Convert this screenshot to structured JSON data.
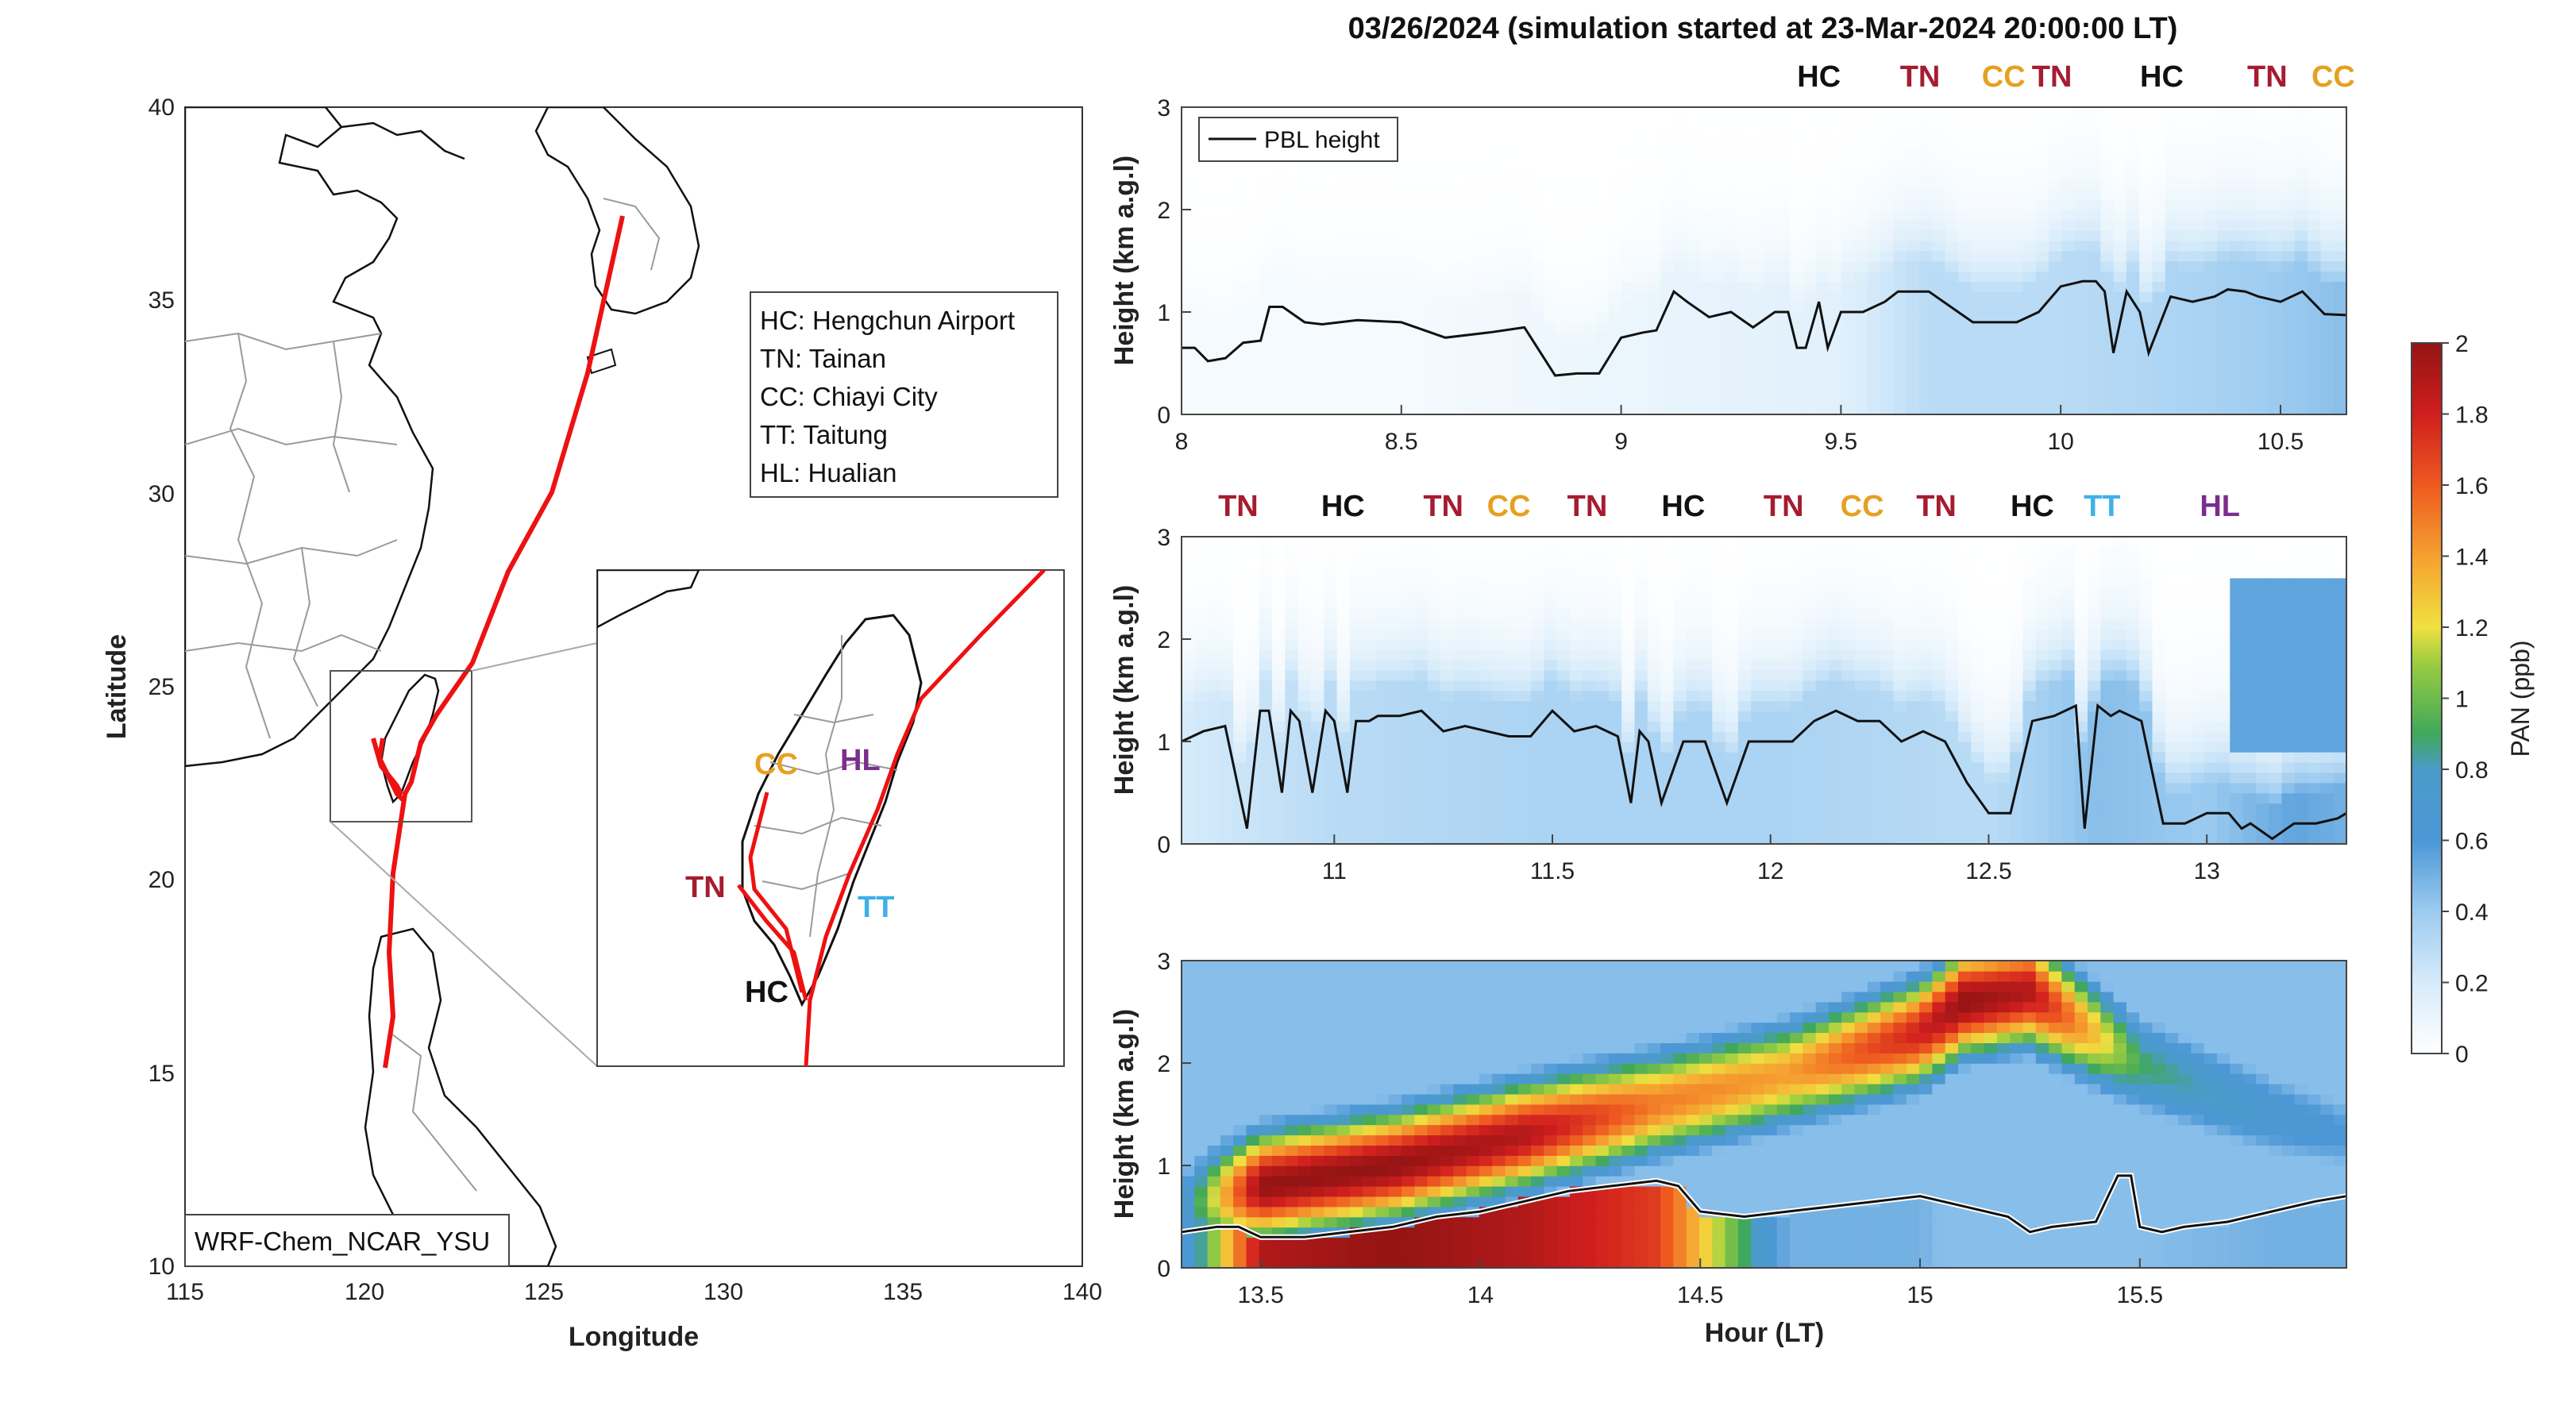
{
  "title": "03/26/2024 (simulation started at 23-Mar-2024 20:00:00 LT)",
  "colors": {
    "HC": "#111111",
    "TN": "#a51c30",
    "CC": "#e6a020",
    "TT": "#3fb1e6",
    "HL": "#7b2d8e",
    "track": "#ee1111"
  },
  "map": {
    "xlabel": "Longitude",
    "ylabel": "Latitude",
    "xticks": [
      "115",
      "120",
      "125",
      "130",
      "135",
      "140"
    ],
    "yticks": [
      "10",
      "15",
      "20",
      "25",
      "30",
      "35",
      "40"
    ],
    "xlim": [
      115,
      140
    ],
    "ylim": [
      10,
      40
    ],
    "legend": [
      "HC: Hengchun Airport",
      "TN: Tainan",
      "CC: Chiayi City",
      "TT: Taitung",
      "HL: Hualian"
    ],
    "model_label": "WRF-Chem_NCAR_YSU",
    "inset_labels": [
      "CC",
      "HL",
      "TN",
      "TT",
      "HC"
    ]
  },
  "chart_data": [
    {
      "type": "heatmap",
      "panel": "top",
      "xlim": [
        8,
        10.65
      ],
      "ylim": [
        0,
        3
      ],
      "xticks": [
        "8",
        "8.5",
        "9",
        "9.5",
        "10",
        "10.5"
      ],
      "yticks": [
        "0",
        "1",
        "2",
        "3"
      ],
      "ylabel": "Height (km a.g.l)",
      "xlabel": "",
      "site_labels": [
        {
          "label": "HC",
          "t": 9.45
        },
        {
          "label": "TN",
          "t": 9.68
        },
        {
          "label": "CC",
          "t": 9.87
        },
        {
          "label": "TN",
          "t": 9.98
        },
        {
          "label": "HC",
          "t": 10.23
        },
        {
          "label": "TN",
          "t": 10.47
        },
        {
          "label": "CC",
          "t": 10.62
        }
      ],
      "legend": [
        "PBL height"
      ],
      "pbl_height": {
        "t": [
          8,
          8.03,
          8.06,
          8.1,
          8.14,
          8.18,
          8.2,
          8.23,
          8.28,
          8.32,
          8.4,
          8.5,
          8.6,
          8.7,
          8.78,
          8.85,
          8.9,
          8.95,
          9.0,
          9.05,
          9.08,
          9.12,
          9.15,
          9.2,
          9.25,
          9.3,
          9.35,
          9.38,
          9.4,
          9.42,
          9.45,
          9.47,
          9.5,
          9.55,
          9.6,
          9.63,
          9.7,
          9.8,
          9.9,
          9.95,
          10.0,
          10.05,
          10.08,
          10.1,
          10.12,
          10.15,
          10.18,
          10.2,
          10.25,
          10.3,
          10.35,
          10.38,
          10.42,
          10.45,
          10.5,
          10.55,
          10.6,
          10.65
        ],
        "h": [
          0.65,
          0.65,
          0.52,
          0.55,
          0.7,
          0.72,
          1.05,
          1.05,
          0.9,
          0.88,
          0.92,
          0.9,
          0.75,
          0.8,
          0.85,
          0.38,
          0.4,
          0.4,
          0.75,
          0.8,
          0.82,
          1.2,
          1.1,
          0.95,
          1.0,
          0.85,
          1.0,
          1.0,
          0.65,
          0.65,
          1.1,
          0.65,
          1.0,
          1.0,
          1.1,
          1.2,
          1.2,
          0.9,
          0.9,
          1.0,
          1.25,
          1.3,
          1.3,
          1.2,
          0.6,
          1.2,
          1.0,
          0.6,
          1.15,
          1.1,
          1.15,
          1.22,
          1.2,
          1.15,
          1.1,
          1.2,
          0.98,
          0.97
        ]
      },
      "pan_summary": {
        "t": [
          8,
          8.5,
          9,
          9.5,
          9.7,
          10,
          10.3,
          10.5,
          10.65
        ],
        "bg_pan": [
          0.05,
          0.05,
          0.1,
          0.15,
          0.3,
          0.3,
          0.35,
          0.4,
          0.45
        ]
      }
    },
    {
      "type": "heatmap",
      "panel": "middle",
      "xlim": [
        10.65,
        13.32
      ],
      "ylim": [
        0,
        3
      ],
      "xticks": [
        "11",
        "11.5",
        "12",
        "12.5",
        "13"
      ],
      "yticks": [
        "0",
        "1",
        "2",
        "3"
      ],
      "ylabel": "Height (km a.g.l)",
      "xlabel": "",
      "site_labels": [
        {
          "label": "TN",
          "t": 10.78
        },
        {
          "label": "HC",
          "t": 11.02
        },
        {
          "label": "TN",
          "t": 11.25
        },
        {
          "label": "CC",
          "t": 11.4
        },
        {
          "label": "TN",
          "t": 11.58
        },
        {
          "label": "HC",
          "t": 11.8
        },
        {
          "label": "TN",
          "t": 12.03
        },
        {
          "label": "CC",
          "t": 12.21
        },
        {
          "label": "TN",
          "t": 12.38
        },
        {
          "label": "HC",
          "t": 12.6
        },
        {
          "label": "TT",
          "t": 12.76
        },
        {
          "label": "HL",
          "t": 13.03
        }
      ],
      "pbl_height": {
        "t": [
          10.65,
          10.7,
          10.75,
          10.8,
          10.83,
          10.85,
          10.88,
          10.9,
          10.92,
          10.95,
          10.98,
          11.0,
          11.03,
          11.05,
          11.08,
          11.1,
          11.15,
          11.2,
          11.25,
          11.3,
          11.35,
          11.4,
          11.45,
          11.5,
          11.55,
          11.6,
          11.65,
          11.68,
          11.7,
          11.72,
          11.75,
          11.8,
          11.85,
          11.9,
          11.95,
          12.0,
          12.05,
          12.1,
          12.15,
          12.2,
          12.25,
          12.3,
          12.35,
          12.4,
          12.45,
          12.5,
          12.55,
          12.6,
          12.65,
          12.7,
          12.72,
          12.75,
          12.78,
          12.8,
          12.85,
          12.9,
          12.95,
          13.0,
          13.05,
          13.08,
          13.1,
          13.15,
          13.2,
          13.25,
          13.3,
          13.32
        ],
        "h": [
          1.0,
          1.1,
          1.15,
          0.15,
          1.3,
          1.3,
          0.5,
          1.3,
          1.2,
          0.5,
          1.3,
          1.2,
          0.5,
          1.2,
          1.2,
          1.25,
          1.25,
          1.3,
          1.1,
          1.15,
          1.1,
          1.05,
          1.05,
          1.3,
          1.1,
          1.15,
          1.05,
          0.4,
          1.1,
          1.0,
          0.4,
          1.0,
          1.0,
          0.4,
          1.0,
          1.0,
          1.0,
          1.2,
          1.3,
          1.2,
          1.2,
          1.0,
          1.1,
          1.0,
          0.6,
          0.3,
          0.3,
          1.2,
          1.25,
          1.35,
          0.15,
          1.35,
          1.25,
          1.3,
          1.2,
          0.2,
          0.2,
          0.3,
          0.3,
          0.15,
          0.2,
          0.05,
          0.2,
          0.2,
          0.25,
          0.3
        ]
      },
      "pan_summary": {
        "t": [
          10.65,
          11,
          11.5,
          12,
          12.5,
          12.75,
          13,
          13.2,
          13.32
        ],
        "bg_pan": [
          0.2,
          0.3,
          0.35,
          0.35,
          0.3,
          0.45,
          0.4,
          0.55,
          0.5
        ]
      }
    },
    {
      "type": "heatmap",
      "panel": "bottom",
      "xlim": [
        13.32,
        15.97
      ],
      "ylim": [
        0,
        3
      ],
      "xticks": [
        "13.5",
        "14",
        "14.5",
        "15",
        "15.5"
      ],
      "yticks": [
        "0",
        "1",
        "2",
        "3"
      ],
      "ylabel": "Height (km a.g.l)",
      "xlabel": "Hour (LT)",
      "pbl_height": {
        "t": [
          13.32,
          13.4,
          13.45,
          13.5,
          13.6,
          13.7,
          13.8,
          13.9,
          14.0,
          14.1,
          14.2,
          14.3,
          14.4,
          14.45,
          14.5,
          14.6,
          14.7,
          14.8,
          14.9,
          15.0,
          15.1,
          15.2,
          15.25,
          15.3,
          15.4,
          15.45,
          15.48,
          15.5,
          15.55,
          15.6,
          15.7,
          15.8,
          15.9,
          15.97
        ],
        "h": [
          0.35,
          0.4,
          0.4,
          0.3,
          0.3,
          0.35,
          0.4,
          0.5,
          0.55,
          0.65,
          0.75,
          0.8,
          0.85,
          0.8,
          0.55,
          0.5,
          0.55,
          0.6,
          0.65,
          0.7,
          0.6,
          0.5,
          0.35,
          0.4,
          0.45,
          0.9,
          0.9,
          0.4,
          0.35,
          0.4,
          0.45,
          0.55,
          0.65,
          0.7
        ]
      },
      "pan_summary": {
        "t": [
          13.32,
          13.5,
          13.8,
          14.1,
          14.4,
          14.7,
          15.0,
          15.1,
          15.25,
          15.5,
          15.8,
          15.97
        ],
        "low_pan": [
          0.5,
          1.9,
          2.0,
          1.9,
          1.7,
          0.5,
          0.5,
          0.4,
          0.4,
          0.45,
          0.5,
          0.5
        ],
        "peak_height_km": [
          0.6,
          0.8,
          1.0,
          1.3,
          1.6,
          1.9,
          2.3,
          2.6,
          2.7,
          2.0,
          1.5,
          1.3
        ],
        "peak_pan": [
          0.6,
          2.0,
          2.0,
          1.9,
          1.5,
          1.4,
          1.8,
          2.0,
          1.9,
          0.9,
          0.7,
          0.6
        ]
      }
    }
  ],
  "colorbar": {
    "label": "PAN (ppb)",
    "ticks": [
      "0",
      "0.2",
      "0.4",
      "0.6",
      "0.8",
      "1",
      "1.2",
      "1.4",
      "1.6",
      "1.8",
      "2"
    ],
    "range": [
      0,
      2
    ]
  }
}
